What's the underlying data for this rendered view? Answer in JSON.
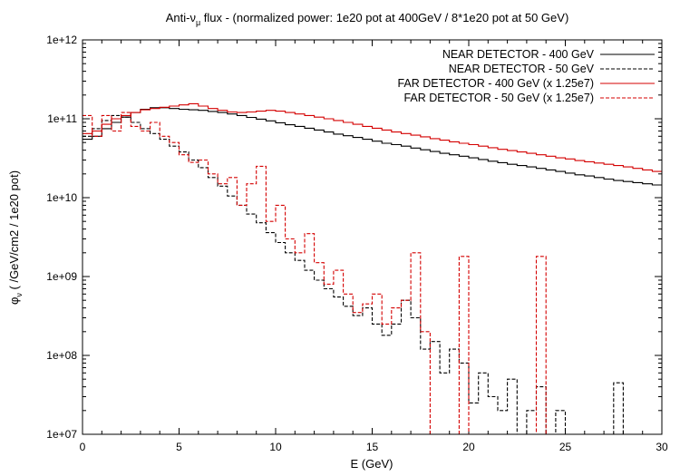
{
  "chart_data": {
    "type": "line",
    "step": true,
    "title_main": "Anti-",
    "title_nu": "ν",
    "title_sub": "μ",
    "title_rest": " flux  - (normalized power: 1e20 pot at 400GeV / 8*1e20 pot at 50 GeV)",
    "xlabel": "E (GeV)",
    "ylabel_phi": "φ",
    "ylabel_nu": "ν",
    "ylabel_rest": " ( /GeV/cm2 / 1e20 pot)",
    "xlim": [
      0,
      30
    ],
    "ylim": [
      10000000.0,
      1000000000000.0
    ],
    "yscale": "log",
    "grid": false,
    "legend_position": "top-right",
    "x_ticks": [
      0,
      5,
      10,
      15,
      20,
      25,
      30
    ],
    "x_tick_labels": [
      "0",
      "5",
      "10",
      "15",
      "20",
      "25",
      "30"
    ],
    "y_ticks": [
      10000000.0,
      100000000.0,
      1000000000.0,
      10000000000.0,
      100000000000.0,
      1000000000000.0
    ],
    "y_tick_labels": [
      "1e+07",
      "1e+08",
      "1e+09",
      "1e+10",
      "1e+11",
      "1e+12"
    ],
    "series": [
      {
        "name": "NEAR DETECTOR - 400 GeV",
        "color": "#000000",
        "dashed": false,
        "points": [
          [
            0,
            55000000000.0
          ],
          [
            0.5,
            60000000000.0
          ],
          [
            1,
            75000000000.0
          ],
          [
            1.5,
            90000000000.0
          ],
          [
            2,
            105000000000.0
          ],
          [
            2.5,
            120000000000.0
          ],
          [
            3,
            132000000000.0
          ],
          [
            3.5,
            138000000000.0
          ],
          [
            4,
            138000000000.0
          ],
          [
            4.5,
            135000000000.0
          ],
          [
            5,
            132000000000.0
          ],
          [
            5.5,
            130000000000.0
          ],
          [
            6,
            128000000000.0
          ],
          [
            6.5,
            124000000000.0
          ],
          [
            7,
            120000000000.0
          ],
          [
            7.5,
            115000000000.0
          ],
          [
            8,
            110000000000.0
          ],
          [
            8.5,
            104000000000.0
          ],
          [
            9,
            99000000000.0
          ],
          [
            9.5,
            94000000000.0
          ],
          [
            10,
            89000000000.0
          ],
          [
            10.5,
            84000000000.0
          ],
          [
            11,
            80000000000.0
          ],
          [
            11.5,
            76000000000.0
          ],
          [
            12,
            72000000000.0
          ],
          [
            12.5,
            68000000000.0
          ],
          [
            13,
            64000000000.0
          ],
          [
            13.5,
            61000000000.0
          ],
          [
            14,
            58000000000.0
          ],
          [
            14.5,
            55000000000.0
          ],
          [
            15,
            52000000000.0
          ],
          [
            15.5,
            49000000000.0
          ],
          [
            16,
            47000000000.0
          ],
          [
            16.5,
            45000000000.0
          ],
          [
            17,
            42500000000.0
          ],
          [
            17.5,
            40500000000.0
          ],
          [
            18,
            38500000000.0
          ],
          [
            18.5,
            36500000000.0
          ],
          [
            19,
            35000000000.0
          ],
          [
            19.5,
            33500000000.0
          ],
          [
            20,
            32000000000.0
          ],
          [
            20.5,
            30500000000.0
          ],
          [
            21,
            29000000000.0
          ],
          [
            21.5,
            27800000000.0
          ],
          [
            22,
            26500000000.0
          ],
          [
            22.5,
            25500000000.0
          ],
          [
            23,
            24500000000.0
          ],
          [
            23.5,
            23500000000.0
          ],
          [
            24,
            22500000000.0
          ],
          [
            24.5,
            21500000000.0
          ],
          [
            25,
            20500000000.0
          ],
          [
            25.5,
            19500000000.0
          ],
          [
            26,
            18800000000.0
          ],
          [
            26.5,
            18000000000.0
          ],
          [
            27,
            17200000000.0
          ],
          [
            27.5,
            16500000000.0
          ],
          [
            28,
            16000000000.0
          ],
          [
            28.5,
            15500000000.0
          ],
          [
            29,
            15000000000.0
          ],
          [
            29.5,
            14500000000.0
          ]
        ]
      },
      {
        "name": "NEAR DETECTOR - 50 GeV",
        "color": "#000000",
        "dashed": true,
        "points": [
          [
            0,
            60000000000.0
          ],
          [
            0.5,
            75000000000.0
          ],
          [
            1,
            95000000000.0
          ],
          [
            1.5,
            110000000000.0
          ],
          [
            2,
            105000000000.0
          ],
          [
            2.5,
            90000000000.0
          ],
          [
            3,
            75000000000.0
          ],
          [
            3.5,
            65000000000.0
          ],
          [
            4,
            55000000000.0
          ],
          [
            4.5,
            45000000000.0
          ],
          [
            5,
            38000000000.0
          ],
          [
            5.5,
            30000000000.0
          ],
          [
            6,
            24000000000.0
          ],
          [
            6.5,
            18000000000.0
          ],
          [
            7,
            14000000000.0
          ],
          [
            7.5,
            10500000000.0
          ],
          [
            8,
            8000000000.0
          ],
          [
            8.5,
            6200000000.0
          ],
          [
            9,
            4800000000.0
          ],
          [
            9.5,
            3600000000.0
          ],
          [
            10,
            2700000000.0
          ],
          [
            10.5,
            2000000000.0
          ],
          [
            11,
            1600000000.0
          ],
          [
            11.5,
            1200000000.0
          ],
          [
            12,
            900000000.0
          ],
          [
            12.5,
            700000000.0
          ],
          [
            13,
            550000000.0
          ],
          [
            13.5,
            420000000.0
          ],
          [
            14,
            320000000.0
          ],
          [
            14.5,
            400000000.0
          ],
          [
            15,
            250000000.0
          ],
          [
            15.5,
            180000000.0
          ],
          [
            16,
            250000000.0
          ],
          [
            16.5,
            500000000.0
          ],
          [
            17,
            300000000.0
          ],
          [
            17.5,
            120000000.0
          ],
          [
            18,
            150000000.0
          ],
          [
            18.5,
            60000000.0
          ],
          [
            19,
            120000000.0
          ],
          [
            19.5,
            80000000.0
          ],
          [
            20,
            25000000.0
          ],
          [
            20.5,
            60000000.0
          ],
          [
            21,
            30000000.0
          ],
          [
            21.5,
            20000000.0
          ],
          [
            22,
            50000000.0
          ],
          [
            22.5,
            10000000.0
          ],
          [
            23,
            20000000.0
          ],
          [
            23.5,
            40000000.0
          ],
          [
            24,
            10000000.0
          ],
          [
            24.5,
            20000000.0
          ],
          [
            25,
            10000000.0
          ],
          [
            27.5,
            45000000.0
          ],
          [
            28,
            10000000.0
          ]
        ]
      },
      {
        "name": "FAR DETECTOR - 400 GeV (x 1.25e7)",
        "color": "#d40000",
        "dashed": false,
        "points": [
          [
            0,
            65000000000.0
          ],
          [
            0.5,
            70000000000.0
          ],
          [
            1,
            85000000000.0
          ],
          [
            1.5,
            100000000000.0
          ],
          [
            2,
            110000000000.0
          ],
          [
            2.5,
            120000000000.0
          ],
          [
            3,
            130000000000.0
          ],
          [
            3.5,
            135000000000.0
          ],
          [
            4,
            140000000000.0
          ],
          [
            4.5,
            145000000000.0
          ],
          [
            5,
            150000000000.0
          ],
          [
            5.5,
            155000000000.0
          ],
          [
            6,
            145000000000.0
          ],
          [
            6.5,
            135000000000.0
          ],
          [
            7,
            128000000000.0
          ],
          [
            7.5,
            122000000000.0
          ],
          [
            8,
            120000000000.0
          ],
          [
            8.5,
            122000000000.0
          ],
          [
            9,
            125000000000.0
          ],
          [
            9.5,
            128000000000.0
          ],
          [
            10,
            125000000000.0
          ],
          [
            10.5,
            120000000000.0
          ],
          [
            11,
            115000000000.0
          ],
          [
            11.5,
            110000000000.0
          ],
          [
            12,
            105000000000.0
          ],
          [
            12.5,
            100000000000.0
          ],
          [
            13,
            95000000000.0
          ],
          [
            13.5,
            90000000000.0
          ],
          [
            14,
            85000000000.0
          ],
          [
            14.5,
            80000000000.0
          ],
          [
            15,
            76000000000.0
          ],
          [
            15.5,
            72000000000.0
          ],
          [
            16,
            68000000000.0
          ],
          [
            16.5,
            65000000000.0
          ],
          [
            17,
            62000000000.0
          ],
          [
            17.5,
            59000000000.0
          ],
          [
            18,
            56000000000.0
          ],
          [
            18.5,
            53500000000.0
          ],
          [
            19,
            51000000000.0
          ],
          [
            19.5,
            49000000000.0
          ],
          [
            20,
            47000000000.0
          ],
          [
            20.5,
            45000000000.0
          ],
          [
            21,
            43000000000.0
          ],
          [
            21.5,
            41000000000.0
          ],
          [
            22,
            39500000000.0
          ],
          [
            22.5,
            38000000000.0
          ],
          [
            23,
            36500000000.0
          ],
          [
            23.5,
            35000000000.0
          ],
          [
            24,
            33500000000.0
          ],
          [
            24.5,
            32000000000.0
          ],
          [
            25,
            31000000000.0
          ],
          [
            25.5,
            29500000000.0
          ],
          [
            26,
            28500000000.0
          ],
          [
            26.5,
            27500000000.0
          ],
          [
            27,
            26500000000.0
          ],
          [
            27.5,
            25500000000.0
          ],
          [
            28,
            24500000000.0
          ],
          [
            28.5,
            23500000000.0
          ],
          [
            29,
            22500000000.0
          ],
          [
            29.5,
            21500000000.0
          ]
        ]
      },
      {
        "name": "FAR DETECTOR - 50 GeV (x 1.25e7)",
        "color": "#d40000",
        "dashed": true,
        "points": [
          [
            0,
            110000000000.0
          ],
          [
            0.5,
            60000000000.0
          ],
          [
            1,
            110000000000.0
          ],
          [
            1.5,
            70000000000.0
          ],
          [
            2,
            120000000000.0
          ],
          [
            2.5,
            80000000000.0
          ],
          [
            3,
            70000000000.0
          ],
          [
            3.5,
            90000000000.0
          ],
          [
            4,
            60000000000.0
          ],
          [
            4.5,
            50000000000.0
          ],
          [
            5,
            35000000000.0
          ],
          [
            5.5,
            28000000000.0
          ],
          [
            6,
            30000000000.0
          ],
          [
            6.5,
            20000000000.0
          ],
          [
            7,
            15000000000.0
          ],
          [
            7.5,
            18000000000.0
          ],
          [
            8,
            8000000000.0
          ],
          [
            8.5,
            15000000000.0
          ],
          [
            9,
            25000000000.0
          ],
          [
            9.5,
            5000000000.0
          ],
          [
            10,
            8000000000.0
          ],
          [
            10.5,
            3000000000.0
          ],
          [
            11,
            2000000000.0
          ],
          [
            11.5,
            3500000000.0
          ],
          [
            12,
            1500000000.0
          ],
          [
            12.5,
            800000000.0
          ],
          [
            13,
            1200000000.0
          ],
          [
            13.5,
            600000000.0
          ],
          [
            14,
            350000000.0
          ],
          [
            14.5,
            450000000.0
          ],
          [
            15,
            600000000.0
          ],
          [
            15.5,
            250000000.0
          ],
          [
            16,
            400000000.0
          ],
          [
            16.5,
            500000000.0
          ],
          [
            17,
            2000000000.0
          ],
          [
            17.5,
            200000000.0
          ],
          [
            18,
            10000000.0
          ],
          [
            19.5,
            1800000000.0
          ],
          [
            20,
            10000000.0
          ],
          [
            23.5,
            1800000000.0
          ],
          [
            24,
            10000000.0
          ]
        ]
      }
    ]
  }
}
